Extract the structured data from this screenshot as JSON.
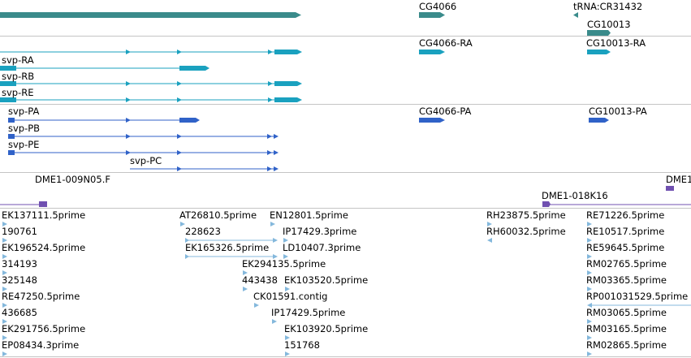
{
  "colors": {
    "gene": "#3a8b8b",
    "transcript": "#1aa1bf",
    "protein": "#3062c8",
    "clone": "#7050b0",
    "est": "#84b8dc",
    "divider": "#c4c4c4"
  },
  "tracks": {
    "gene_labels": [
      "CG4066",
      "tRNA:CR31432",
      "CG10013"
    ],
    "transcript_labels": [
      "CG4066-RA",
      "CG10013-RA",
      "svp-RA",
      "svp-RB",
      "svp-RE"
    ],
    "protein_labels": [
      "svp-PA",
      "CG4066-PA",
      "CG10013-PA",
      "svp-PB",
      "svp-PE",
      "svp-PC"
    ],
    "clone_labels": [
      "DME1-009N05.F",
      "DME1",
      "DME1-018K16"
    ],
    "est_labels": [
      "EK137111.5prime",
      "190761",
      "EK196524.5prime",
      "314193",
      "325148",
      "RE47250.5prime",
      "436685",
      "EK291756.5prime",
      "EP08434.3prime",
      "AT26810.5prime",
      "228623",
      "EK165326.5prime",
      "EN12801.5prime",
      "IP17429.3prime",
      "LD10407.3prime",
      "EK294135.5prime",
      "443438",
      "EK103520.5prime",
      "CK01591.contig",
      "IP17429.5prime",
      "EK103920.5prime",
      "151768",
      "RH23875.5prime",
      "RH60032.5prime",
      "RE71226.5prime",
      "RE10517.5prime",
      "RE59645.5prime",
      "RM02765.5prime",
      "RM03365.5prime",
      "RP001031529.5prime",
      "RM03065.5prime",
      "RM03165.5prime",
      "RM02865.5prime"
    ]
  }
}
